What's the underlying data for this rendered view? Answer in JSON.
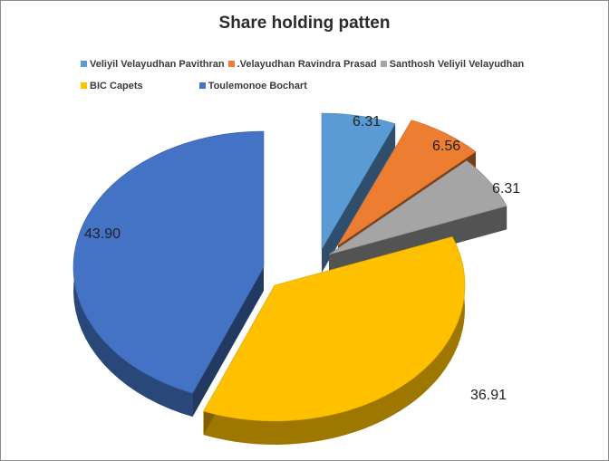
{
  "chart_data": {
    "type": "pie",
    "title": "Share holding patten",
    "categories": [
      "Veliyil Velayudhan Pavithran",
      ".Velayudhan Ravindra Prasad",
      "Santhosh Veliyil Velayudhan",
      "BIC Capets",
      "Toulemonoe Bochart"
    ],
    "values": [
      6.31,
      6.56,
      6.31,
      36.91,
      43.9
    ],
    "value_labels": [
      "6.31",
      "6.56",
      "6.31",
      "36.91",
      "43.90"
    ],
    "colors": [
      "#5b9bd5",
      "#ed7d31",
      "#a5a5a5",
      "#ffc000",
      "#4472c4"
    ],
    "legend_position": "top",
    "exploded": true,
    "three_d": true
  }
}
